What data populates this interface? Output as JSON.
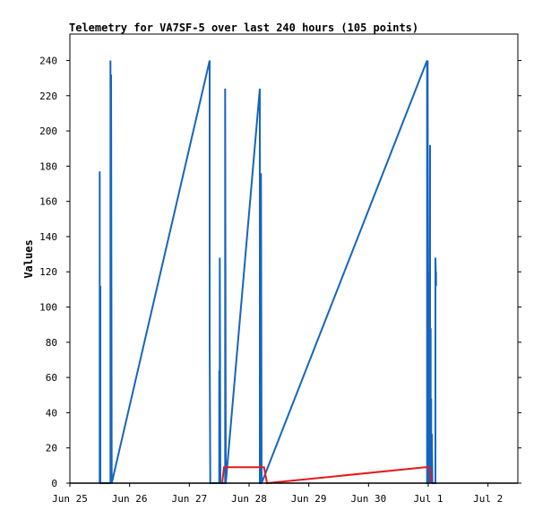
{
  "chart_data": {
    "type": "line",
    "title": "Telemetry for VA7SF-5 over last 240 hours (105 points)",
    "xlabel": "",
    "ylabel": "Values",
    "xlim": [
      -0.5,
      7.0
    ],
    "ylim": [
      0,
      255
    ],
    "x_ticks": [
      {
        "x": -0.5,
        "label": "Jun 25"
      },
      {
        "x": 0.5,
        "label": "Jun 26"
      },
      {
        "x": 1.5,
        "label": "Jun 27"
      },
      {
        "x": 2.5,
        "label": "Jun 28"
      },
      {
        "x": 3.5,
        "label": "Jun 29"
      },
      {
        "x": 4.5,
        "label": "Jun 30"
      },
      {
        "x": 5.5,
        "label": "Jul 1"
      },
      {
        "x": 6.5,
        "label": "Jul 2"
      }
    ],
    "y_ticks": [
      0,
      20,
      40,
      60,
      80,
      100,
      120,
      140,
      160,
      180,
      200,
      220,
      240
    ],
    "grid": false,
    "legend": "none",
    "series": [
      {
        "color": "#1565c0",
        "points": [
          [
            0.0,
            0
          ],
          [
            0.0,
            177
          ],
          [
            0.0,
            0
          ],
          [
            0.01,
            112
          ],
          [
            0.01,
            0
          ],
          [
            0.18,
            0
          ],
          [
            0.18,
            240
          ],
          [
            0.19,
            0
          ],
          [
            0.19,
            232
          ],
          [
            0.2,
            0
          ],
          [
            1.84,
            240
          ],
          [
            1.84,
            80
          ],
          [
            1.85,
            0
          ],
          [
            2.0,
            0
          ],
          [
            2.0,
            64
          ],
          [
            2.01,
            0
          ],
          [
            2.01,
            128
          ],
          [
            2.02,
            0
          ],
          [
            2.1,
            0
          ],
          [
            2.1,
            224
          ],
          [
            2.11,
            0
          ],
          [
            2.68,
            224
          ],
          [
            2.68,
            0
          ],
          [
            2.7,
            0
          ],
          [
            2.7,
            176
          ],
          [
            2.71,
            0
          ],
          [
            5.48,
            240
          ],
          [
            5.48,
            0
          ],
          [
            5.49,
            0
          ],
          [
            5.49,
            240
          ],
          [
            5.5,
            0
          ],
          [
            5.5,
            120
          ],
          [
            5.51,
            0
          ],
          [
            5.51,
            96
          ],
          [
            5.52,
            0
          ],
          [
            5.53,
            192
          ],
          [
            5.53,
            0
          ],
          [
            5.54,
            88
          ],
          [
            5.54,
            0
          ],
          [
            5.55,
            48
          ],
          [
            5.55,
            0
          ],
          [
            5.56,
            28
          ],
          [
            5.57,
            0
          ],
          [
            5.62,
            0
          ],
          [
            5.62,
            128
          ],
          [
            5.63,
            112
          ],
          [
            5.63,
            120
          ]
        ]
      },
      {
        "color": "#e41a1c",
        "points": [
          [
            2.05,
            0
          ],
          [
            2.08,
            9
          ],
          [
            2.75,
            9
          ],
          [
            2.8,
            0
          ],
          [
            5.45,
            9
          ],
          [
            5.52,
            9
          ],
          [
            5.56,
            0
          ]
        ]
      },
      {
        "color": "#000000",
        "points": [
          [
            -0.5,
            0
          ],
          [
            7.0,
            0
          ]
        ]
      }
    ]
  }
}
